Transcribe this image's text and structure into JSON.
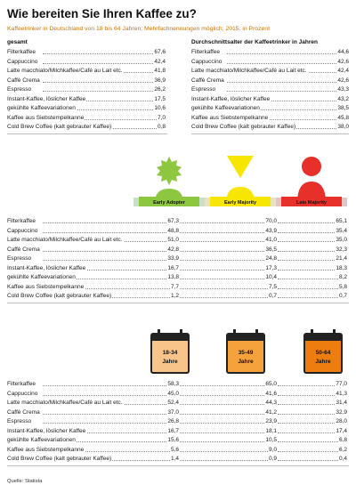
{
  "title": "Wie bereiten Sie Ihren Kaffee zu?",
  "subtitle": "Kaffeetrinker in Deutschland von 18 bis 64 Jahren; Mehrfachnennungen möglich; 2015; in Prozent",
  "source": "Quelle: Statista",
  "chart_data": [
    {
      "type": "table",
      "title": "gesamt",
      "categories": [
        "Filterkaffee",
        "Cappuccino",
        "Latte macchiato/Milchkaffee/Café au Lait etc.",
        "Caffè Crema",
        "Espresso",
        "Instant-Kaffee, löslicher Kaffee",
        "gekühlte Kaffeevariationen",
        "Kaffee aus Siebstempelkanne",
        "Cold Brew Coffee (kalt gebrauter Kaffee)"
      ],
      "values": [
        "67,6",
        "42,4",
        "41,8",
        "36,9",
        "26,2",
        "17,5",
        "10,6",
        "7,0",
        "0,8"
      ]
    },
    {
      "type": "table",
      "title": "Durchschnittsalter der Kaffeetrinker in Jahren",
      "categories": [
        "Filterkaffee",
        "Cappuccino",
        "Latte macchiato/Milchkaffee/Café au Lait etc.",
        "Caffè Crema",
        "Espresso",
        "Instant-Kaffee, löslicher Kaffee",
        "gekühlte Kaffeevariationen",
        "Kaffee aus Siebstempelkanne",
        "Cold Brew Coffee (kalt gebrauter Kaffee)"
      ],
      "values": [
        "44,6",
        "42,6",
        "42,4",
        "42,6",
        "43,3",
        "43,2",
        "38,5",
        "45,8",
        "38,0"
      ]
    },
    {
      "type": "table",
      "categories": [
        "Filterkaffee",
        "Cappuccino",
        "Latte macchiato/Milchkaffee/Café au Lait etc.",
        "Caffè Crema",
        "Espresso",
        "Instant-Kaffee, löslicher Kaffee",
        "gekühlte Kaffeevariationen",
        "Kaffee aus Siebstempelkanne",
        "Cold Brew Coffee (kalt gebrauter Kaffee)"
      ],
      "series": [
        {
          "name": "Early Adopter",
          "values": [
            "67,3",
            "48,8",
            "51,0",
            "42,8",
            "33,9",
            "16,7",
            "13,8",
            "7,7",
            "1,2"
          ]
        },
        {
          "name": "Early Majority",
          "values": [
            "70,0",
            "43,9",
            "41,0",
            "36,5",
            "24,8",
            "17,3",
            "10,4",
            "7,5",
            "0,7"
          ]
        },
        {
          "name": "Late Majority",
          "values": [
            "65,1",
            "35,4",
            "35,0",
            "32,3",
            "21,4",
            "18,3",
            "8,2",
            "5,8",
            "0,7"
          ]
        }
      ]
    },
    {
      "type": "table",
      "categories": [
        "Filterkaffee",
        "Cappuccino",
        "Latte macchiato/Milchkaffee/Café au Lait etc.",
        "Caffè Crema",
        "Espresso",
        "Instant-Kaffee, löslicher Kaffee",
        "gekühlte Kaffeevariationen",
        "Kaffee aus Siebstempelkanne",
        "Cold Brew Coffee (kalt gebrauter Kaffee)"
      ],
      "series": [
        {
          "name": "18-34 Jahre",
          "values": [
            "58,3",
            "45,0",
            "52,4",
            "37,0",
            "26,8",
            "16,7",
            "15,6",
            "5,6",
            "1,4"
          ]
        },
        {
          "name": "35-49 Jahre",
          "values": [
            "65,0",
            "41,6",
            "44,3",
            "41,2",
            "23,9",
            "18,1",
            "10,5",
            "9,0",
            "0,9"
          ]
        },
        {
          "name": "50-64 Jahre",
          "values": [
            "77,0",
            "41,3",
            "31,4",
            "32,9",
            "28,0",
            "17,4",
            "6,8",
            "6,2",
            "0,4"
          ]
        }
      ]
    }
  ],
  "adopters": {
    "early_adopter": {
      "label": "Early Adopter",
      "color": "#8dc63f"
    },
    "early_majority": {
      "label": "Early Majority",
      "color": "#f7e600"
    },
    "late_majority": {
      "label": "Late Majority",
      "color": "#e8302a"
    }
  },
  "ages": {
    "a1": {
      "line1": "18-34",
      "line2": "Jahre",
      "fill": "#f8c48a"
    },
    "a2": {
      "line1": "35-49",
      "line2": "Jahre",
      "fill": "#f5a23c"
    },
    "a3": {
      "line1": "50-64",
      "line2": "Jahre",
      "fill": "#ee7d10"
    }
  }
}
